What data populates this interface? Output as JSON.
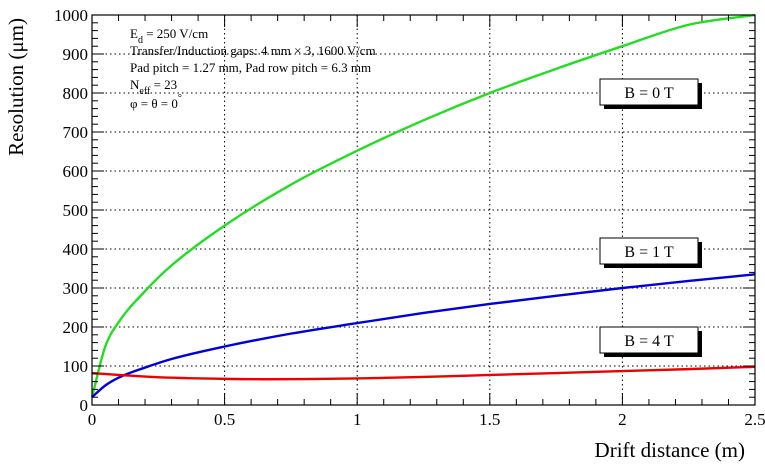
{
  "chart_data": {
    "type": "line",
    "xlabel": "Drift distance (m)",
    "ylabel": "Resolution (μm)",
    "xlim": [
      0,
      2.5
    ],
    "ylim": [
      0,
      1000
    ],
    "xticks": [
      0,
      0.5,
      1,
      1.5,
      2,
      2.5
    ],
    "xtick_labels": [
      "0",
      "0.5",
      "1",
      "1.5",
      "2",
      "2.5"
    ],
    "yticks": [
      0,
      100,
      200,
      300,
      400,
      500,
      600,
      700,
      800,
      900,
      1000
    ],
    "ytick_labels": [
      "0",
      "100",
      "200",
      "300",
      "400",
      "500",
      "600",
      "700",
      "800",
      "900",
      "1000"
    ],
    "grid": true,
    "annotations": [
      {
        "base": "E",
        "sub": "d",
        "rest": " = 250 V/cm"
      },
      {
        "text": "Transfer/Induction gaps: 4 mm × 3, 1600 V/cm"
      },
      {
        "text": "Pad pitch = 1.27 mm, Pad row pitch = 6.3 mm"
      },
      {
        "base": "N",
        "sub": "eff",
        "rest": " = 23"
      },
      {
        "text": "φ = θ = 0",
        "sup": "°"
      }
    ],
    "series": [
      {
        "name": "B = 0 T",
        "color": "#22dd22",
        "x": [
          0,
          0.05,
          0.1,
          0.2,
          0.3,
          0.5,
          0.75,
          1,
          1.25,
          1.5,
          1.75,
          2,
          2.25,
          2.5
        ],
        "y": [
          20,
          150,
          212,
          292,
          358,
          460,
          565,
          652,
          730,
          800,
          862,
          920,
          975,
          1000
        ]
      },
      {
        "name": "B = 1 T",
        "color": "#0000dd",
        "x": [
          0,
          0.05,
          0.1,
          0.2,
          0.3,
          0.5,
          0.75,
          1,
          1.25,
          1.5,
          1.75,
          2,
          2.25,
          2.5
        ],
        "y": [
          20,
          50,
          70,
          96,
          118,
          150,
          183,
          210,
          236,
          259,
          280,
          300,
          318,
          335
        ]
      },
      {
        "name": "B = 4 T",
        "color": "#ee0000",
        "x": [
          0,
          0.1,
          0.2,
          0.3,
          0.5,
          0.65,
          0.8,
          1,
          1.25,
          1.5,
          1.75,
          2,
          2.25,
          2.5
        ],
        "y": [
          82,
          77,
          73,
          70,
          67,
          66,
          66.5,
          68,
          72,
          77,
          82,
          87,
          92,
          98
        ]
      }
    ],
    "legend_labels": [
      {
        "text": "B = 0 T",
        "series": 0
      },
      {
        "text": "B = 1 T",
        "series": 1
      },
      {
        "text": "B = 4 T",
        "series": 2
      }
    ]
  }
}
